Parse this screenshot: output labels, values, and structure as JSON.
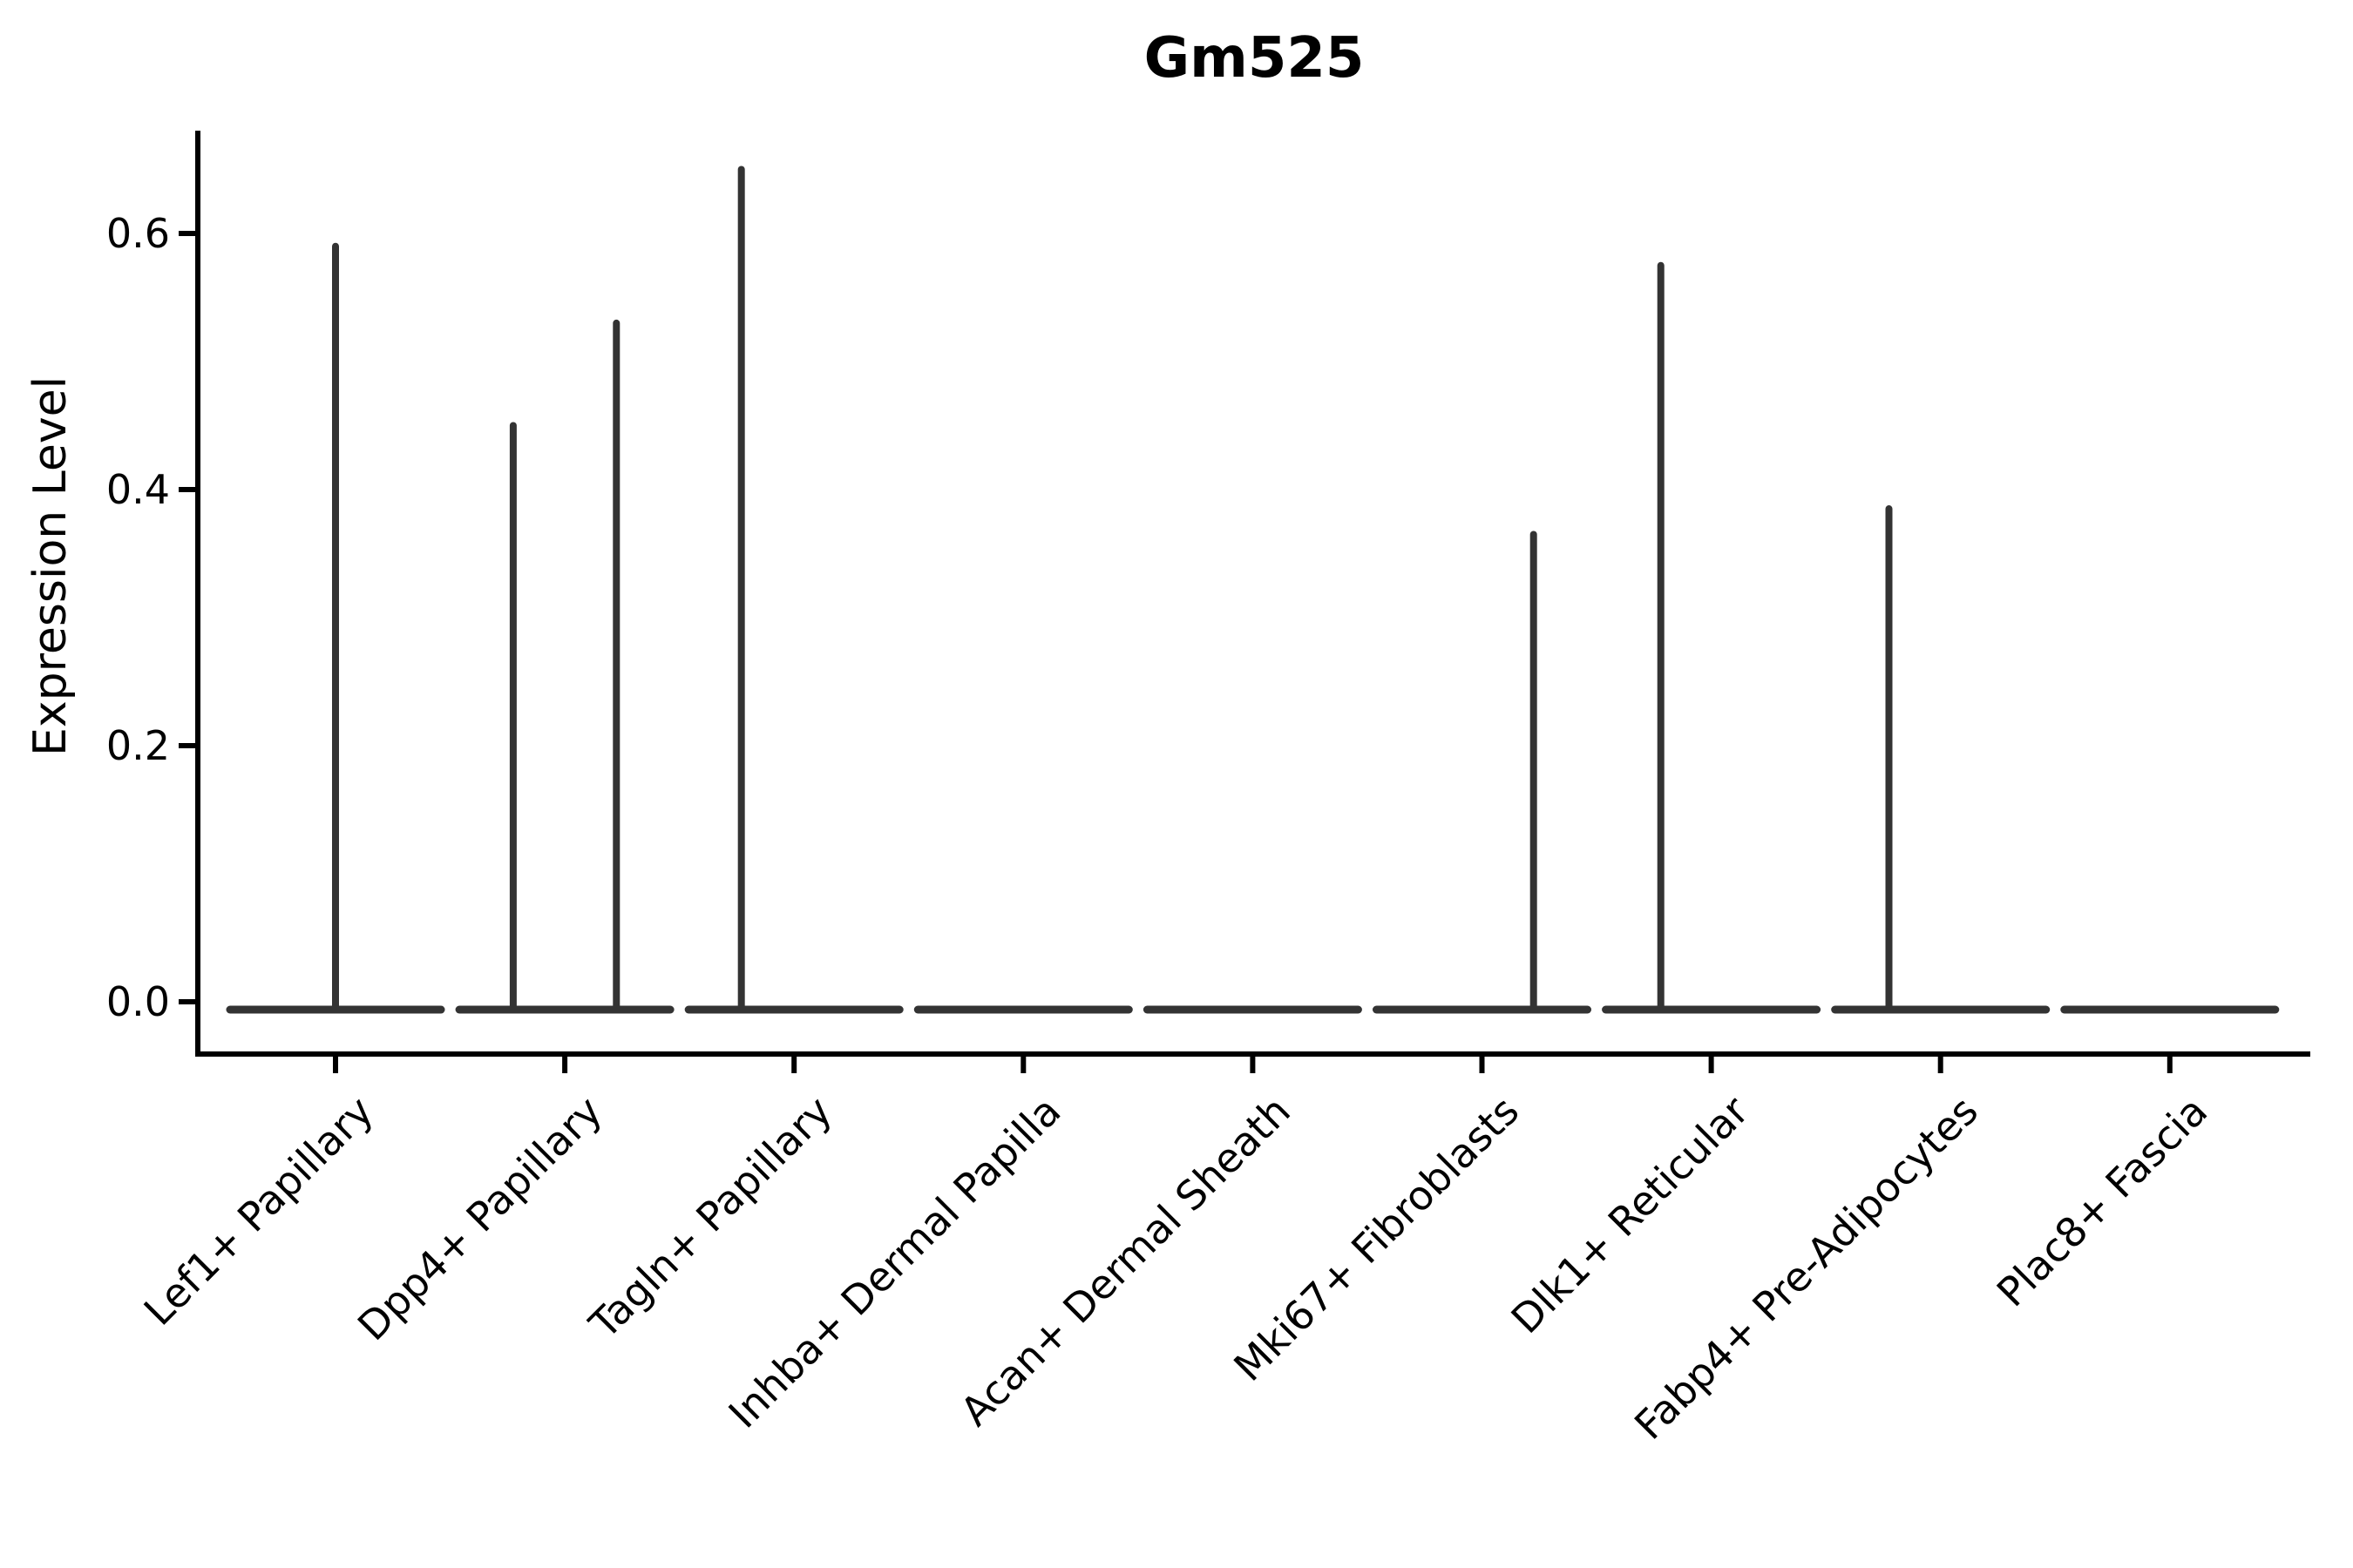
{
  "title": "Gm525",
  "colors": {
    "violin_line": "#333333",
    "axis_line": "#000000",
    "text": "#000000",
    "background": "#ffffff"
  },
  "chart_data": {
    "type": "violin",
    "title": "Gm525",
    "xlabel": "",
    "ylabel": "Expression Level",
    "ylim": [
      -0.04,
      0.68
    ],
    "yticks": [
      0.0,
      0.2,
      0.4,
      0.6
    ],
    "ytick_labels": [
      "0.0",
      "0.2",
      "0.4",
      "0.6"
    ],
    "grid": false,
    "legend": "none",
    "categories": [
      "Lef1+ Papillary",
      "Dpp4+ Papillary",
      "Tagln+ Papillary",
      "Inhba+ Dermal Papilla",
      "Acan+ Dermal Sheath",
      "Mki67+ Fibroblasts",
      "Dlk1+ Reticular",
      "Fabp4+ Pre-Adipocytes",
      "Plac8+ Fascia"
    ],
    "violins": [
      {
        "category": "Lef1+ Papillary",
        "body_value": 0.0,
        "body_halfwidth": 0.46,
        "spikes": [
          {
            "x_offset": 0.0,
            "max_value": 0.59
          }
        ]
      },
      {
        "category": "Dpp4+ Papillary",
        "body_value": 0.0,
        "body_halfwidth": 0.46,
        "spikes": [
          {
            "x_offset": -0.225,
            "max_value": 0.45
          },
          {
            "x_offset": 0.225,
            "max_value": 0.53
          }
        ]
      },
      {
        "category": "Tagln+ Papillary",
        "body_value": 0.0,
        "body_halfwidth": 0.46,
        "spikes": [
          {
            "x_offset": -0.23,
            "max_value": 0.65
          }
        ]
      },
      {
        "category": "Inhba+ Dermal Papilla",
        "body_value": 0.0,
        "body_halfwidth": 0.46,
        "spikes": []
      },
      {
        "category": "Acan+ Dermal Sheath",
        "body_value": 0.0,
        "body_halfwidth": 0.46,
        "spikes": []
      },
      {
        "category": "Mki67+ Fibroblasts",
        "body_value": 0.0,
        "body_halfwidth": 0.46,
        "spikes": [
          {
            "x_offset": 0.225,
            "max_value": 0.365
          }
        ]
      },
      {
        "category": "Dlk1+ Reticular",
        "body_value": 0.0,
        "body_halfwidth": 0.46,
        "spikes": [
          {
            "x_offset": -0.22,
            "max_value": 0.575
          }
        ]
      },
      {
        "category": "Fabp4+ Pre-Adipocytes",
        "body_value": 0.0,
        "body_halfwidth": 0.46,
        "spikes": [
          {
            "x_offset": -0.225,
            "max_value": 0.385
          }
        ]
      },
      {
        "category": "Plac8+ Fascia",
        "body_value": 0.0,
        "body_halfwidth": 0.46,
        "spikes": []
      }
    ]
  }
}
